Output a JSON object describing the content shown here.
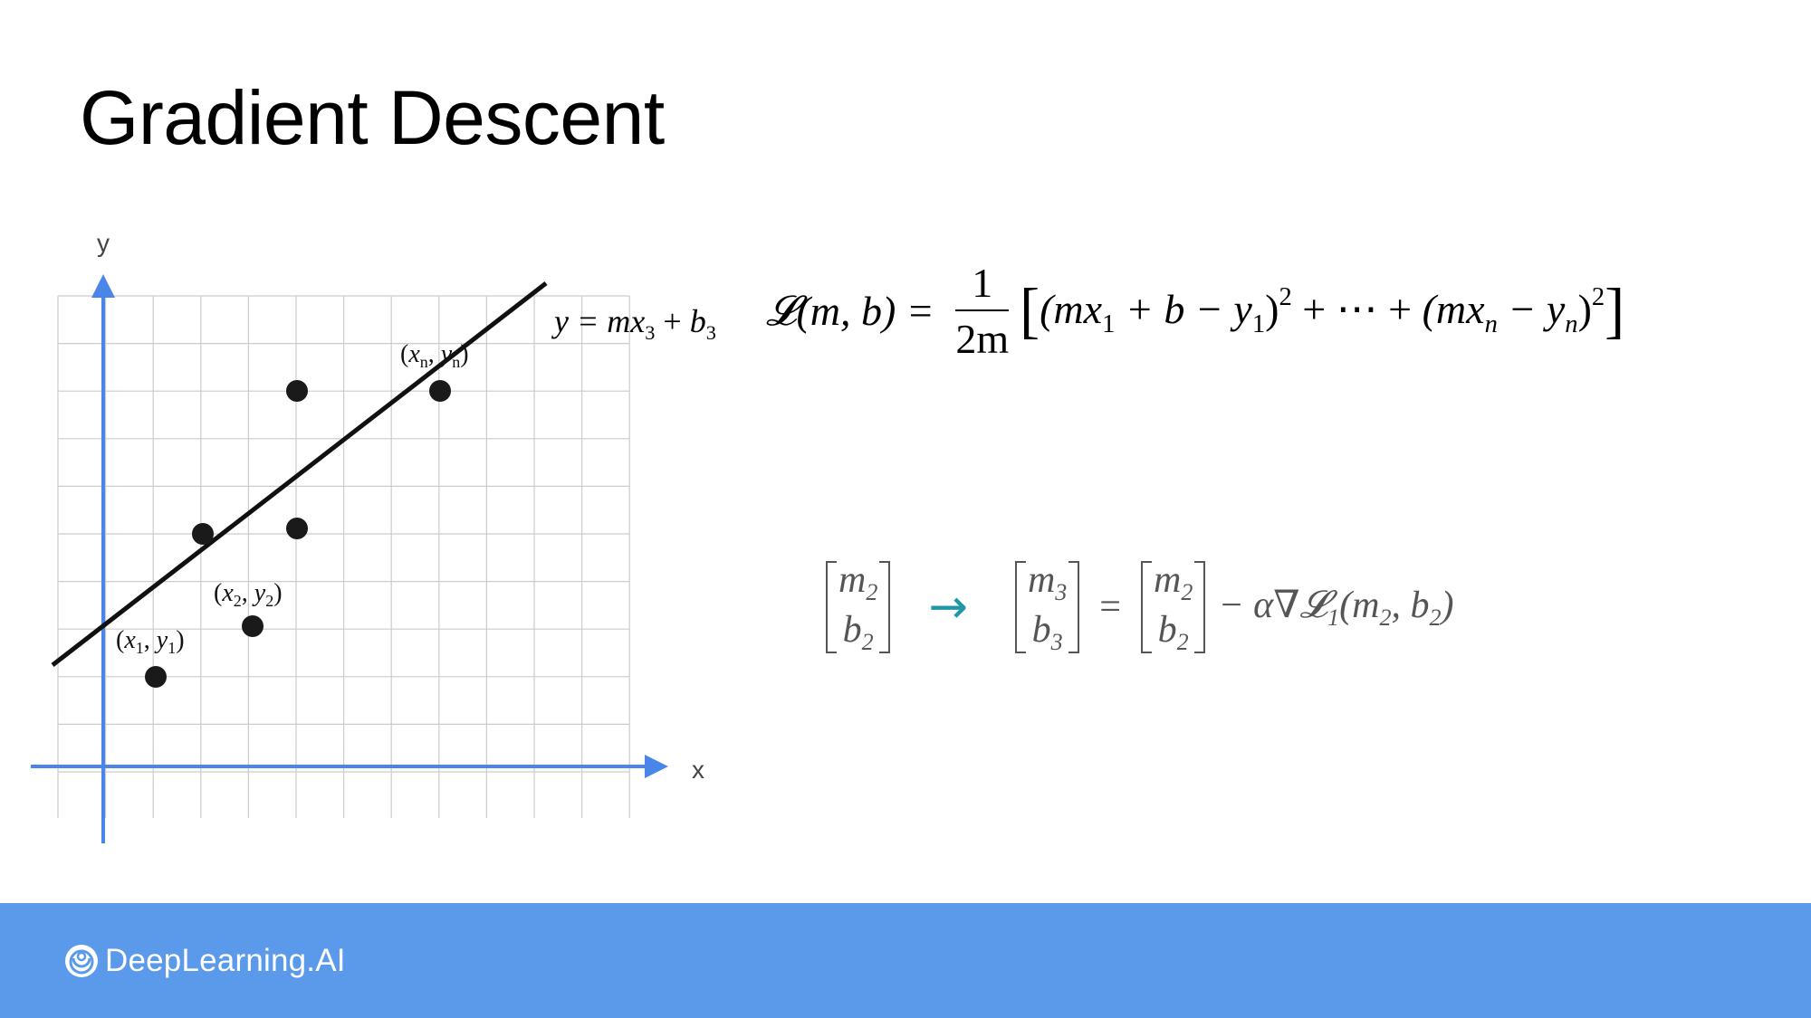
{
  "title": "Gradient Descent",
  "plot": {
    "y_axis_label": "y",
    "x_axis_label": "x",
    "point_labels": {
      "p1": {
        "base": "x",
        "sub": "1",
        "base2": "y",
        "sub2": "1"
      },
      "p2": {
        "base": "x",
        "sub": "2",
        "base2": "y",
        "sub2": "2"
      },
      "pn": {
        "base": "x",
        "sub": "n",
        "base2": "y",
        "sub2": "n"
      }
    },
    "axis_color": "#4a86e8",
    "grid_color": "#cccccc",
    "point_color": "#1a1a1a"
  },
  "line_equation": {
    "lhs": "y = m",
    "x": "x",
    "x_sub": "3",
    "plus": " + ",
    "b": "b",
    "b_sub": "3"
  },
  "loss": {
    "lhs": "𝓛(m, b) = ",
    "numerator": "1",
    "denominator": "2m",
    "open": "[",
    "term1": "(mx",
    "term1_sub": "1",
    "term1_rest": " + b − y",
    "term1_sub2": "1",
    "close1": ")",
    "sq": "2",
    "middle": " + ⋯ + ",
    "term2": "(mx",
    "term2_sub": "n",
    "term2_rest": " − y",
    "term2_sub2": "n",
    "close2": ")",
    "sq2": "2",
    "close": "]"
  },
  "update": {
    "old_m": "m",
    "old_m_sub": "2",
    "old_b": "b",
    "old_b_sub": "2",
    "new_m": "m",
    "new_m_sub": "3",
    "new_b": "b",
    "new_b_sub": "3",
    "equals": "=",
    "cur_m": "m",
    "cur_m_sub": "2",
    "cur_b": "b",
    "cur_b_sub": "2",
    "gradient": "− α∇𝓛",
    "gradient_sub": "1",
    "args_open": "(m",
    "args_m_sub": "2",
    "args_mid": ", b",
    "args_b_sub": "2",
    "args_close": ")",
    "arrow_color": "#1f97a6"
  },
  "footer": {
    "brand": "DeepLearning.AI",
    "color": "#5b9aea"
  }
}
